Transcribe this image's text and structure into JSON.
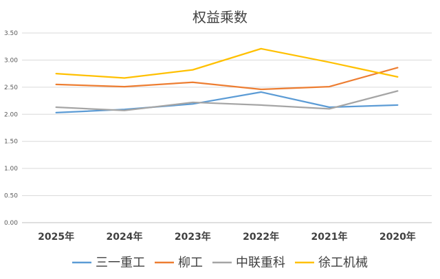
{
  "chart_data": {
    "type": "line",
    "title": "权益乘数",
    "categories": [
      "2025年",
      "2024年",
      "2023年",
      "2022年",
      "2021年",
      "2020年"
    ],
    "ylim": [
      0,
      3.5
    ],
    "yticks": [
      "0.00",
      "0.50",
      "1.00",
      "1.50",
      "2.00",
      "2.50",
      "3.00",
      "3.50"
    ],
    "grid": true,
    "legend_position": "bottom",
    "series": [
      {
        "name": "三一重工",
        "color": "#5b9bd5",
        "values": [
          2.03,
          2.09,
          2.19,
          2.41,
          2.13,
          2.17
        ]
      },
      {
        "name": "柳工",
        "color": "#ed7d31",
        "values": [
          2.55,
          2.51,
          2.59,
          2.46,
          2.51,
          2.86
        ]
      },
      {
        "name": "中联重科",
        "color": "#a5a5a5",
        "values": [
          2.13,
          2.07,
          2.22,
          2.17,
          2.1,
          2.43
        ]
      },
      {
        "name": "徐工机械",
        "color": "#ffc000",
        "values": [
          2.75,
          2.67,
          2.82,
          3.21,
          2.96,
          2.69
        ]
      }
    ]
  }
}
